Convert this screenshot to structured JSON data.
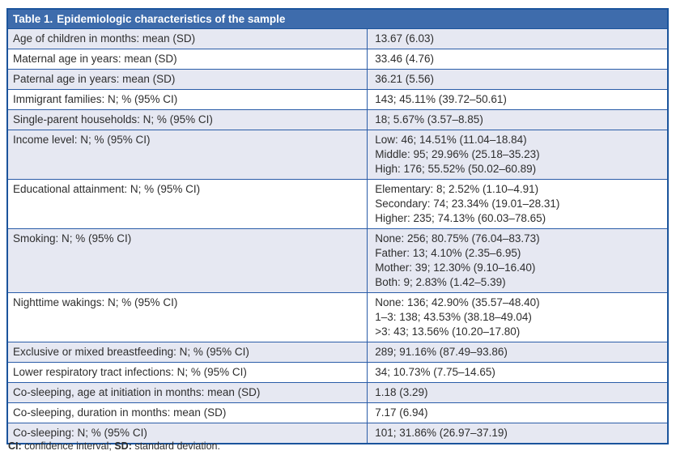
{
  "table": {
    "title_label": "Table 1.",
    "title_text": "Epidemiologic characteristics of the sample",
    "rows": [
      {
        "label": "Age of children in months: mean (SD)",
        "value": "13.67 (6.03)"
      },
      {
        "label": "Maternal age in years: mean (SD)",
        "value": "33.46 (4.76)"
      },
      {
        "label": "Paternal age in years: mean (SD)",
        "value": "36.21 (5.56)"
      },
      {
        "label": "Immigrant families: N; % (95% CI)",
        "value": "143; 45.11% (39.72–50.61)"
      },
      {
        "label": "Single-parent households: N; % (95% CI)",
        "value": "18; 5.67% (3.57–8.85)"
      },
      {
        "label": "Income level: N; % (95% CI)",
        "value": "Low: 46; 14.51% (11.04–18.84)\nMiddle: 95; 29.96% (25.18–35.23)\nHigh: 176; 55.52% (50.02–60.89)"
      },
      {
        "label": "Educational attainment: N; % (95% CI)",
        "value": "Elementary: 8; 2.52% (1.10–4.91)\nSecondary: 74; 23.34% (19.01–28.31)\nHigher: 235; 74.13% (60.03–78.65)"
      },
      {
        "label": "Smoking: N; % (95% CI)",
        "value": "None: 256; 80.75% (76.04–83.73)\nFather: 13; 4.10% (2.35–6.95)\nMother: 39; 12.30% (9.10–16.40)\nBoth: 9; 2.83% (1.42–5.39)"
      },
      {
        "label": "Nighttime wakings: N; % (95% CI)",
        "value": "None: 136; 42.90% (35.57–48.40)\n1–3: 138; 43.53% (38.18–49.04)\n>3: 43; 13.56% (10.20–17.80)"
      },
      {
        "label": "Exclusive or mixed breastfeeding: N; % (95% CI)",
        "value": "289; 91.16% (87.49–93.86)"
      },
      {
        "label": "Lower respiratory tract infections: N; % (95% CI)",
        "value": "34; 10.73% (7.75–14.65)"
      },
      {
        "label": "Co-sleeping, age at initiation in months: mean (SD)",
        "value": "1.18 (3.29)"
      },
      {
        "label": "Co-sleeping, duration in months: mean (SD)",
        "value": "7.17 (6.94)"
      },
      {
        "label": "Co-sleeping: N; % (95% CI)",
        "value": "101; 31.86% (26.97–37.19)"
      }
    ]
  },
  "footnote": {
    "ci_label": "CI:",
    "ci_text": " confidence interval; ",
    "sd_label": "SD:",
    "sd_text": " standard deviation."
  },
  "colors": {
    "header_bg": "#3e6cac",
    "border_blue": "#1b549c",
    "shaded_row_bg": "#e6e8f2",
    "header_text": "#ffffff"
  }
}
